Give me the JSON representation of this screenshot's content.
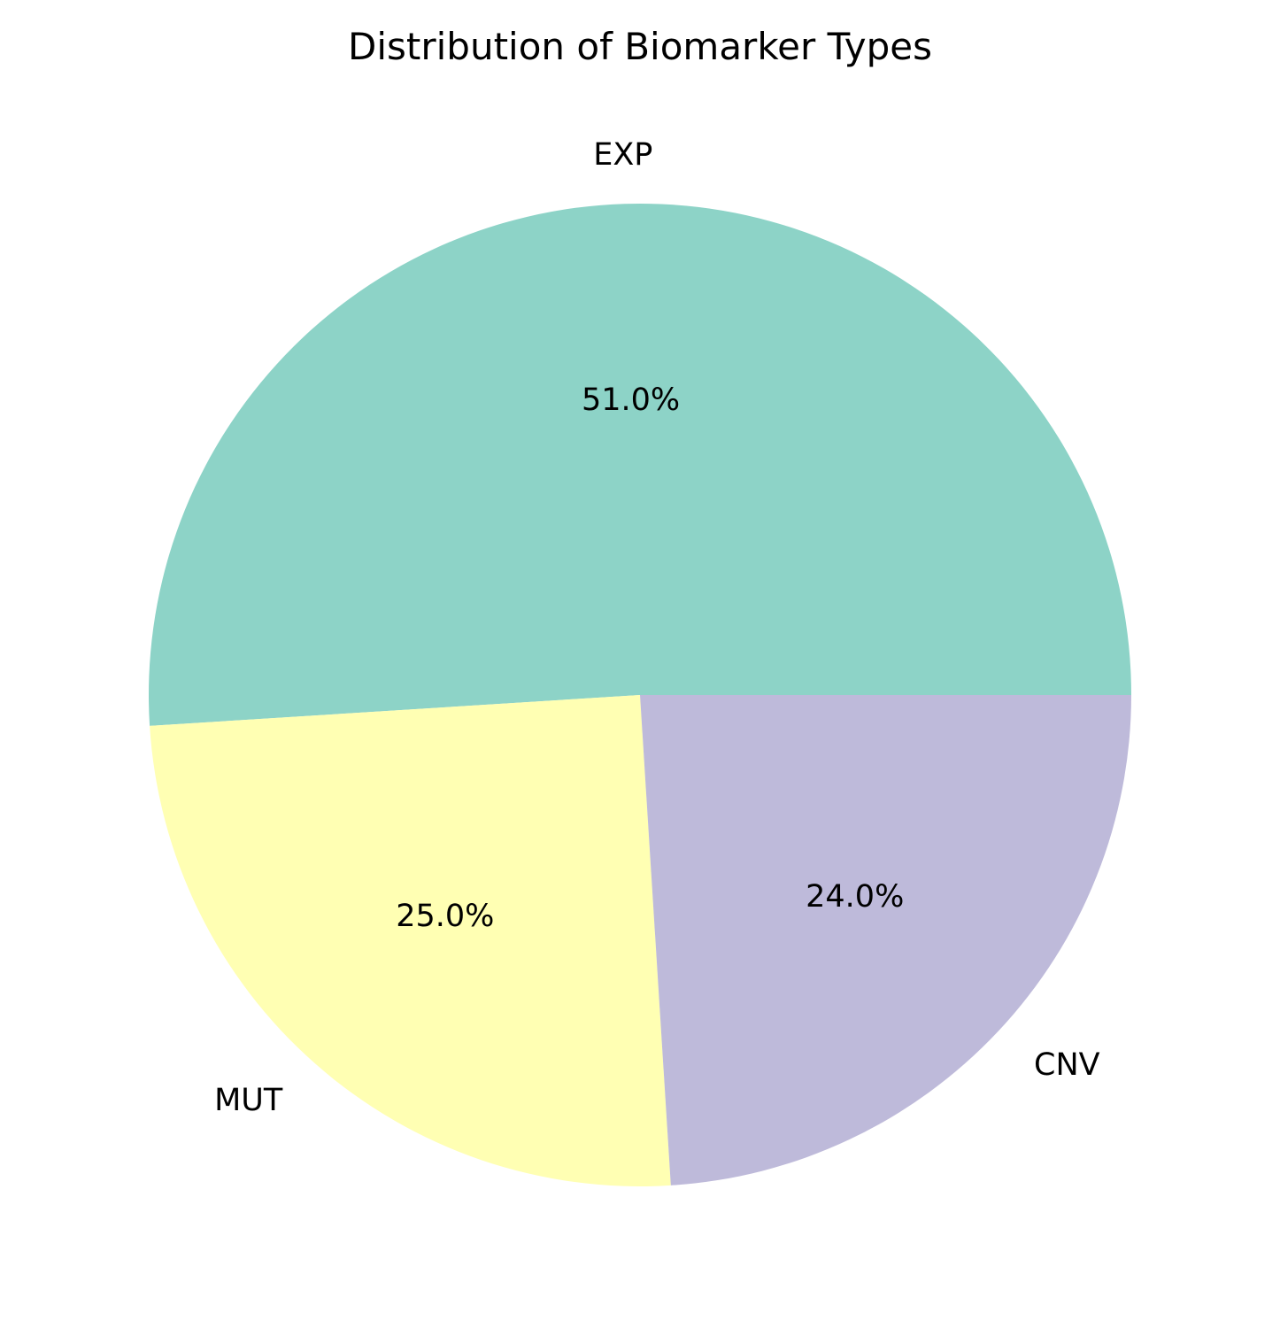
{
  "chart_data": {
    "type": "pie",
    "title": "Distribution of Biomarker Types",
    "categories": [
      "EXP",
      "MUT",
      "CNV"
    ],
    "values": [
      51.0,
      25.0,
      24.0
    ],
    "percent_labels": [
      "51.0%",
      "25.0%",
      "24.0%"
    ],
    "colors": [
      "#8dd3c7",
      "#ffffb3",
      "#bebada"
    ],
    "start_angle_deg": 0,
    "direction": "counterclockwise",
    "legend": "none"
  }
}
